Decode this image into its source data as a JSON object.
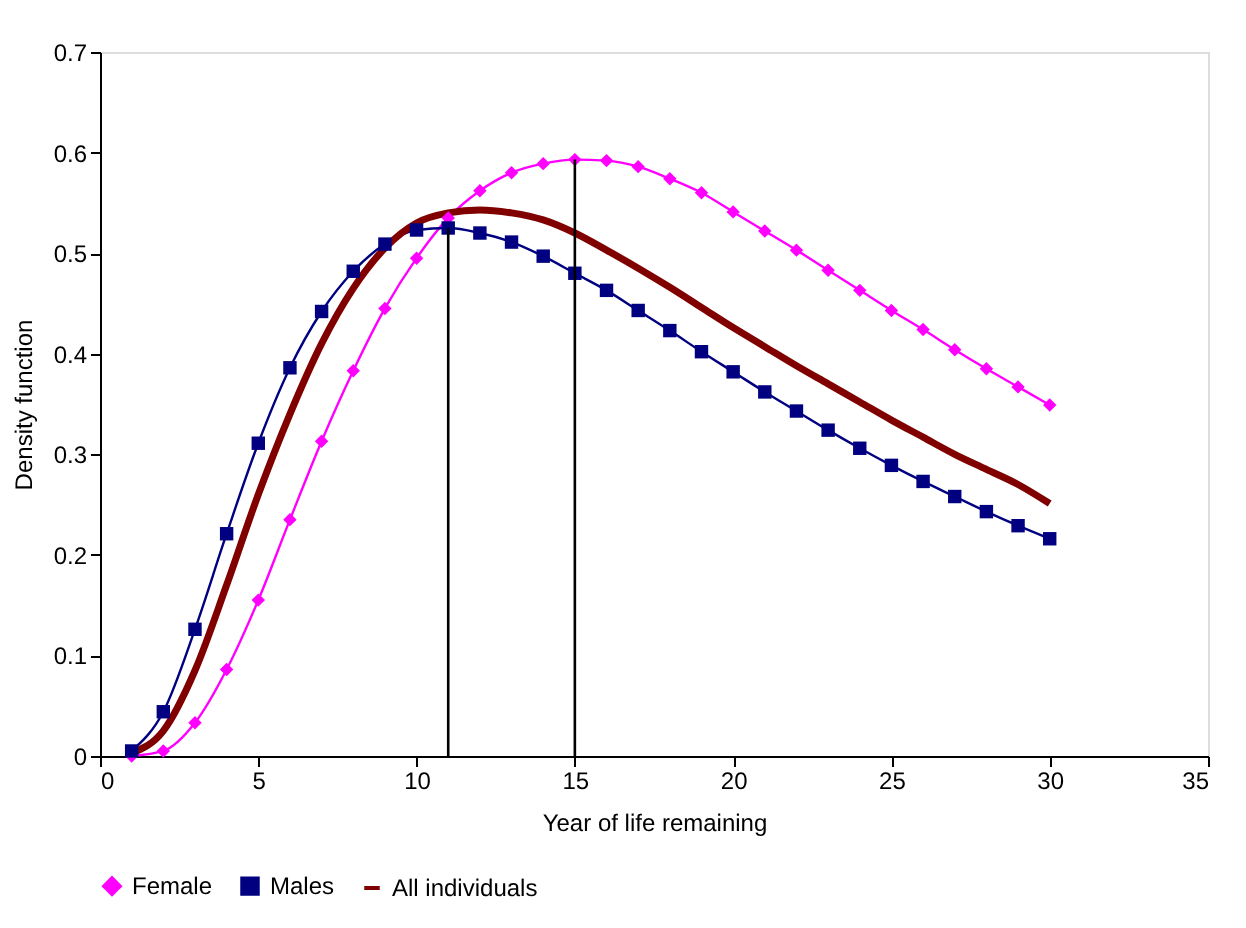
{
  "chart_data": {
    "type": "line",
    "xlabel": "Year of life remaining",
    "ylabel": "Density function",
    "x": [
      1,
      2,
      3,
      4,
      5,
      6,
      7,
      8,
      9,
      10,
      11,
      12,
      13,
      14,
      15,
      16,
      17,
      18,
      19,
      20,
      21,
      22,
      23,
      24,
      25,
      26,
      27,
      28,
      29,
      30
    ],
    "series": [
      {
        "name": "Female",
        "color": "#ff00ff",
        "marker": "diamond",
        "values": [
          0.0,
          0.005,
          0.033,
          0.086,
          0.155,
          0.235,
          0.313,
          0.383,
          0.445,
          0.495,
          0.535,
          0.562,
          0.58,
          0.589,
          0.593,
          0.592,
          0.586,
          0.574,
          0.56,
          0.541,
          0.522,
          0.503,
          0.483,
          0.463,
          0.443,
          0.424,
          0.404,
          0.385,
          0.367,
          0.349
        ]
      },
      {
        "name": "Males",
        "color": "#000080",
        "marker": "square",
        "values": [
          0.005,
          0.044,
          0.126,
          0.221,
          0.311,
          0.386,
          0.442,
          0.482,
          0.509,
          0.523,
          0.525,
          0.52,
          0.511,
          0.497,
          0.48,
          0.463,
          0.443,
          0.423,
          0.402,
          0.382,
          0.362,
          0.343,
          0.324,
          0.306,
          0.289,
          0.273,
          0.258,
          0.243,
          0.229,
          0.216
        ]
      },
      {
        "name": "All individuals",
        "color": "#800000",
        "marker": "none",
        "values": [
          0.003,
          0.025,
          0.085,
          0.17,
          0.26,
          0.34,
          0.41,
          0.465,
          0.505,
          0.53,
          0.54,
          0.543,
          0.54,
          0.533,
          0.52,
          0.503,
          0.485,
          0.466,
          0.446,
          0.426,
          0.407,
          0.388,
          0.37,
          0.352,
          0.334,
          0.317,
          0.3,
          0.285,
          0.27,
          0.251
        ]
      }
    ],
    "xlim": [
      0,
      35
    ],
    "xticks": [
      0,
      5,
      10,
      15,
      20,
      25,
      30,
      35
    ],
    "ylim": [
      0,
      0.7
    ],
    "yticks": [
      0,
      0.1,
      0.2,
      0.3,
      0.4,
      0.5,
      0.6,
      0.7
    ],
    "ref_lines": [
      {
        "axis": "x",
        "value": 11,
        "color": "#000000"
      },
      {
        "axis": "x",
        "value": 15,
        "color": "#000000"
      }
    ],
    "grid": false,
    "legend": "bottom"
  }
}
